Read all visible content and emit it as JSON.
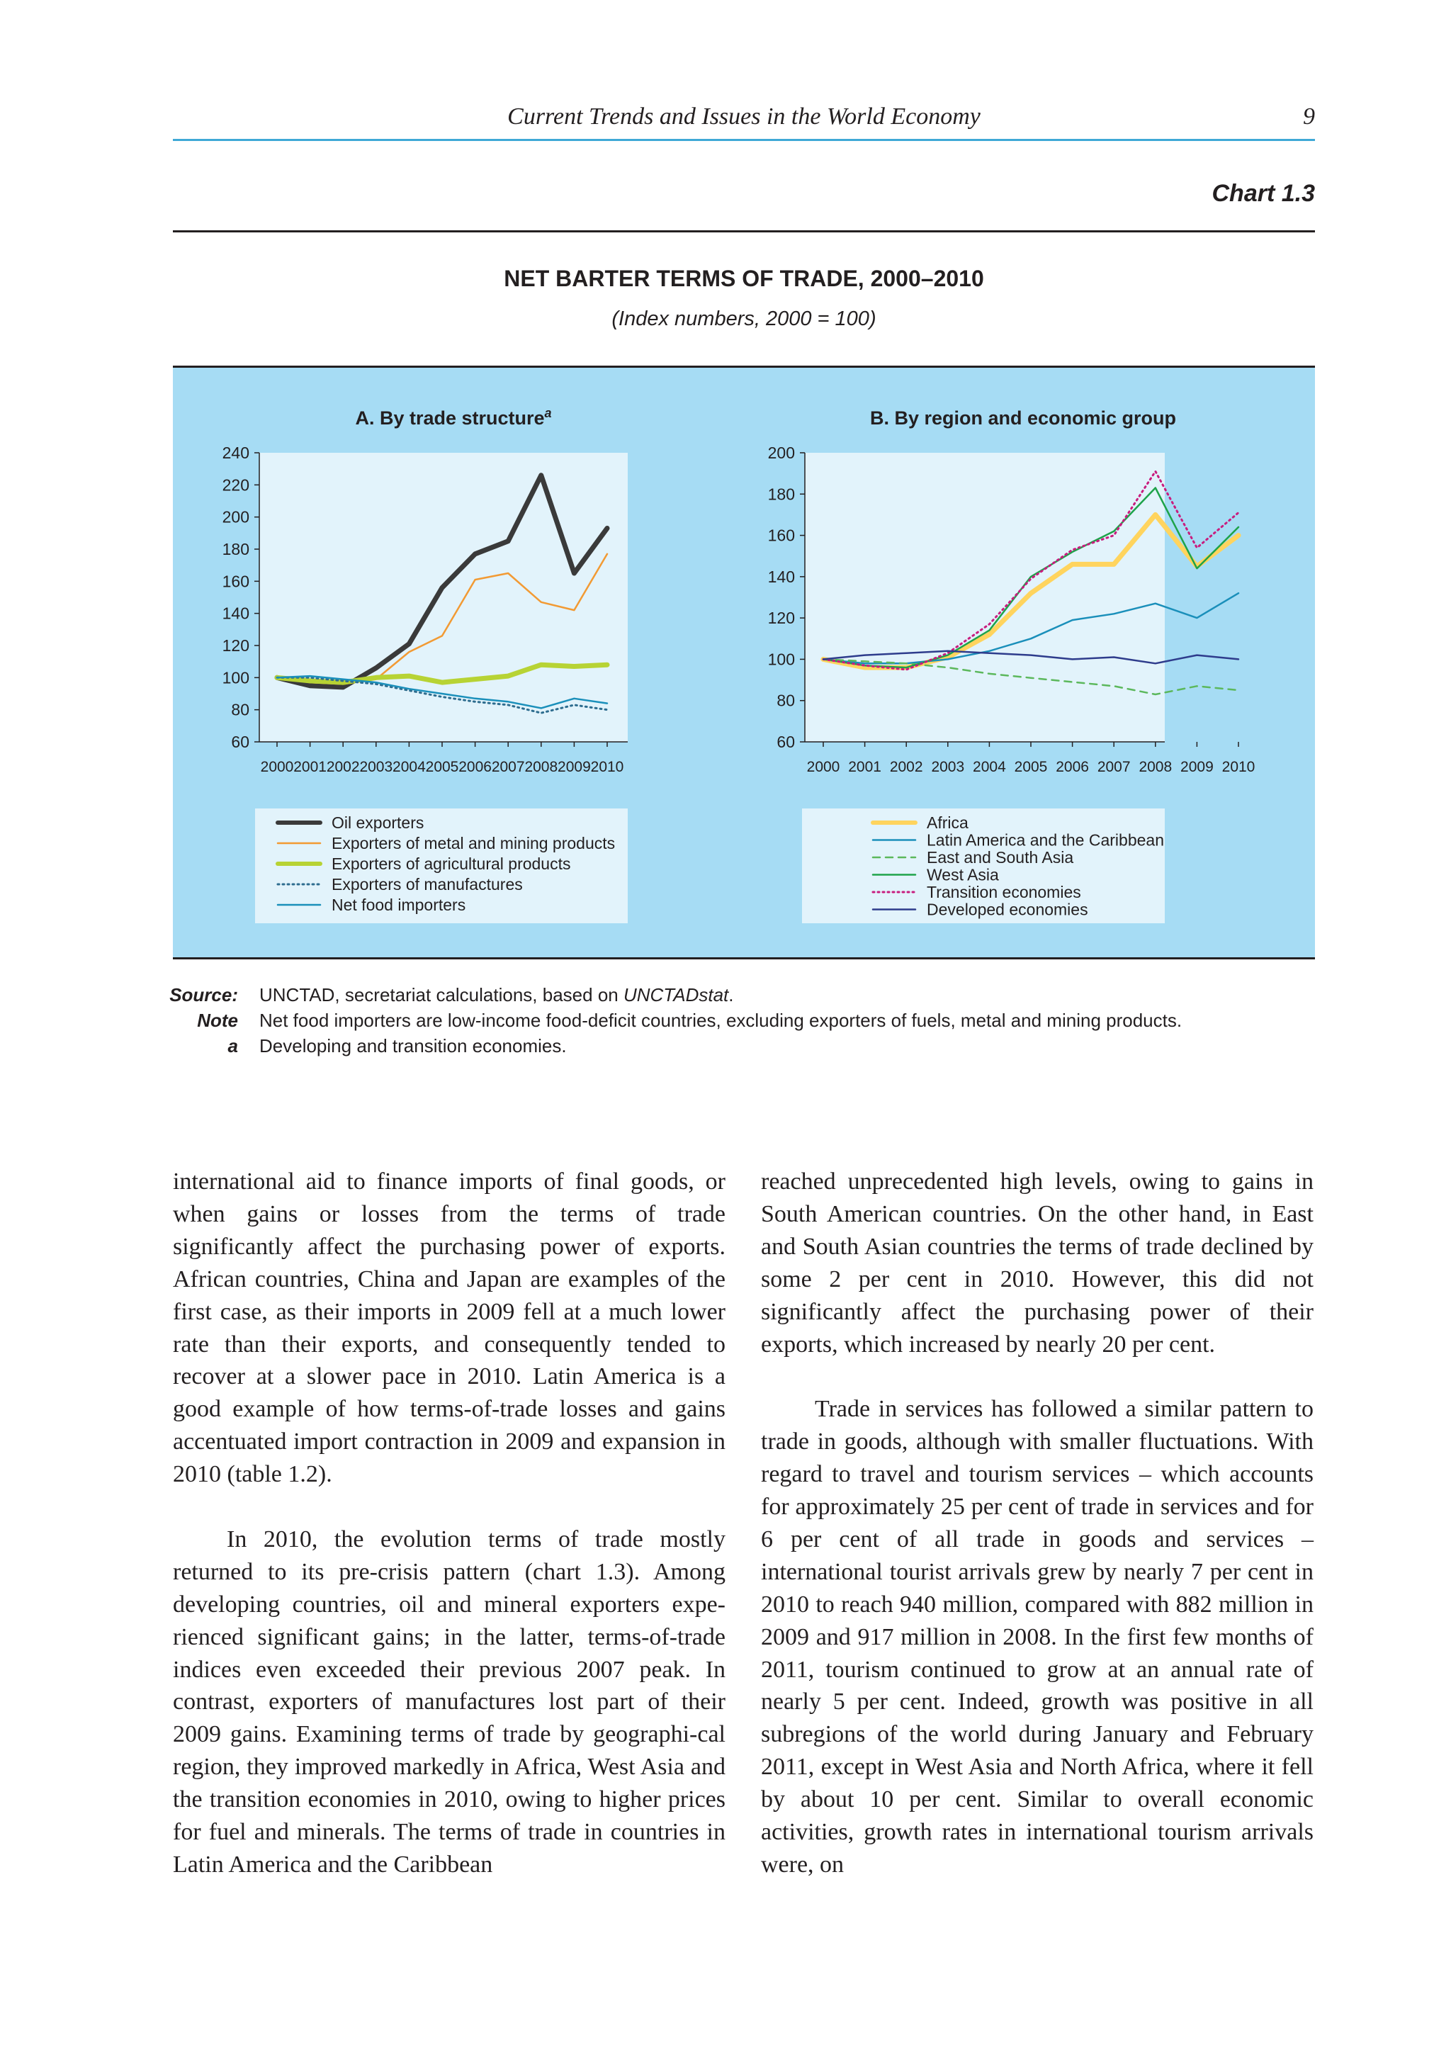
{
  "header": {
    "running_title": "Current Trends and Issues in the World Economy",
    "page_number": "9"
  },
  "chart_label": "Chart 1.3",
  "figure": {
    "title": "NET BARTER TERMS OF TRADE, 2000–2010",
    "subtitle": "(Index numbers, 2000 = 100)"
  },
  "chart_data": [
    {
      "type": "line",
      "title": "A. By trade structure",
      "title_superscript": "a",
      "x": [
        "2000",
        "2001",
        "2002",
        "2003",
        "2004",
        "2005",
        "2006",
        "2007",
        "2008",
        "2009",
        "2010"
      ],
      "ylim": [
        60,
        240
      ],
      "yticks": [
        60,
        80,
        100,
        120,
        140,
        160,
        180,
        200,
        220,
        240
      ],
      "legend_position": "bottom",
      "series": [
        {
          "name": "Oil exporters",
          "color": "#3a3a3a",
          "style": "solid-thick",
          "values": [
            100,
            95,
            94,
            106,
            121,
            156,
            177,
            185,
            226,
            165,
            193
          ]
        },
        {
          "name": "Exporters of metal and mining products",
          "color": "#f29a33",
          "style": "solid",
          "values": [
            100,
            97,
            96,
            99,
            116,
            126,
            161,
            165,
            147,
            142,
            177
          ]
        },
        {
          "name": "Exporters of agricultural products",
          "color": "#b7d334",
          "style": "solid-thick",
          "values": [
            100,
            98,
            97,
            100,
            101,
            97,
            99,
            101,
            108,
            107,
            108
          ]
        },
        {
          "name": "Exporters of manufactures",
          "color": "#2e6d8f",
          "style": "dotted",
          "values": [
            100,
            100,
            98,
            96,
            92,
            88,
            85,
            83,
            78,
            83,
            80
          ]
        },
        {
          "name": "Net food importers",
          "color": "#1a8fba",
          "style": "solid",
          "values": [
            100,
            101,
            99,
            97,
            93,
            90,
            87,
            85,
            81,
            87,
            84
          ]
        }
      ]
    },
    {
      "type": "line",
      "title": "B. By region and economic group",
      "x": [
        "2000",
        "2001",
        "2002",
        "2003",
        "2004",
        "2005",
        "2006",
        "2007",
        "2008",
        "2009",
        "2010"
      ],
      "ylim": [
        60,
        200
      ],
      "yticks": [
        60,
        80,
        100,
        120,
        140,
        160,
        180,
        200
      ],
      "legend_position": "bottom",
      "series": [
        {
          "name": "Africa",
          "color": "#ffd45e",
          "style": "solid-thick",
          "values": [
            100,
            96,
            96,
            101,
            112,
            132,
            146,
            146,
            170,
            145,
            160
          ]
        },
        {
          "name": "Latin America and the Caribbean",
          "color": "#1a8fba",
          "style": "solid",
          "values": [
            100,
            98,
            98,
            100,
            104,
            110,
            119,
            122,
            127,
            120,
            132
          ]
        },
        {
          "name": "East and South Asia",
          "color": "#5cb85c",
          "style": "dashed",
          "values": [
            100,
            99,
            98,
            96,
            93,
            91,
            89,
            87,
            83,
            87,
            85
          ]
        },
        {
          "name": "West Asia",
          "color": "#1ea34a",
          "style": "solid",
          "values": [
            100,
            97,
            96,
            102,
            114,
            140,
            152,
            162,
            183,
            144,
            164
          ]
        },
        {
          "name": "Transition economies",
          "color": "#c81d7e",
          "style": "dotted",
          "values": [
            100,
            97,
            95,
            103,
            117,
            139,
            153,
            160,
            191,
            154,
            171
          ]
        },
        {
          "name": "Developed economies",
          "color": "#2e3c8c",
          "style": "solid",
          "values": [
            100,
            102,
            103,
            104,
            103,
            102,
            100,
            101,
            98,
            102,
            100
          ]
        }
      ]
    }
  ],
  "source_notes": {
    "source_label": "Source:",
    "source_text_before": "UNCTAD, secretariat calculations, based on ",
    "source_text_italic": "UNCTADstat",
    "source_text_after": ".",
    "note_label": "Note",
    "note_text": "Net food importers are low-income food-deficit countries, excluding exporters of fuels, metal and mining products.",
    "a_label": "a",
    "a_text": "Developing and transition economies."
  },
  "body": {
    "left_col": [
      "international aid to finance imports of final goods, or when gains or losses from the terms of trade significantly affect the purchasing power of exports. African countries, China and Japan are examples of the first case, as their imports in 2009 fell at a much lower rate than their exports, and consequently tended to recover at a slower pace in 2010. Latin America is a good example of how terms-of-trade losses and gains accentuated import contraction in 2009 and expansion in 2010 (table 1.2).",
      "In 2010, the evolution terms of trade mostly returned to its pre-crisis pattern (chart 1.3). Among developing countries, oil and mineral exporters expe-rienced significant gains; in the latter, terms-of-trade indices even exceeded their previous 2007 peak. In contrast, exporters of manufactures lost part of their 2009 gains. Examining terms of trade by geographi-cal region, they improved markedly in Africa, West Asia and the transition economies in 2010, owing to higher prices for fuel and minerals. The terms of trade in countries in Latin America and the Caribbean"
    ],
    "right_col": [
      "reached unprecedented high levels, owing to gains in South American countries. On the other hand, in East and South Asian countries the terms of trade declined by some 2 per cent in 2010. However, this did not significantly affect the purchasing power of their exports, which increased by nearly 20 per cent.",
      "Trade in services has followed a similar pattern to trade in goods, although with smaller fluctuations. With regard to travel and tourism services – which accounts for approximately 25 per cent of trade in services and for 6 per cent of all trade in goods and services – international tourist arrivals grew by nearly 7 per cent in 2010 to reach 940 million, compared with 882 million in 2009 and 917 million in 2008. In the first few months of 2011, tourism continued to grow at an annual rate of nearly 5 per cent. Indeed, growth was positive in all subregions of the world during January and February 2011, except in West Asia and North Africa, where it fell by about 10 per cent. Similar to overall economic activities, growth rates in international tourism arrivals were, on"
    ]
  }
}
